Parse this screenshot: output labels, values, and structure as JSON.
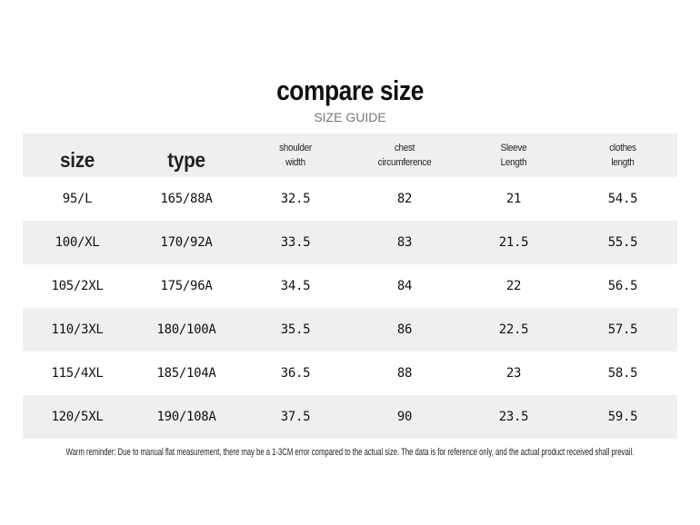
{
  "header": {
    "title": "compare size",
    "subtitle": "SIZE GUIDE"
  },
  "table": {
    "columns": [
      "size",
      "type",
      "shoulder\nwidth",
      "chest\ncircumference",
      "Sleeve\nLength",
      "clothes\nlength"
    ],
    "rows": [
      [
        "95/L",
        "165/88A",
        "32.5",
        "82",
        "21",
        "54.5"
      ],
      [
        "100/XL",
        "170/92A",
        "33.5",
        "83",
        "21.5",
        "55.5"
      ],
      [
        "105/2XL",
        "175/96A",
        "34.5",
        "84",
        "22",
        "56.5"
      ],
      [
        "110/3XL",
        "180/100A",
        "35.5",
        "86",
        "22.5",
        "57.5"
      ],
      [
        "115/4XL",
        "185/104A",
        "36.5",
        "88",
        "23",
        "58.5"
      ],
      [
        "120/5XL",
        "190/108A",
        "37.5",
        "90",
        "23.5",
        "59.5"
      ]
    ]
  },
  "footer": {
    "note": "Warm reminder: Due to manual flat measurement, there may be a 1-3CM error compared to the actual size. The data is for reference only, and the actual product received shall prevail."
  }
}
